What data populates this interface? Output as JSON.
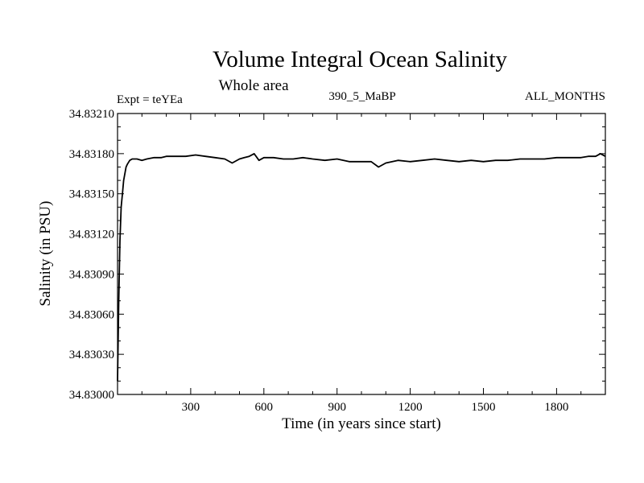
{
  "chart_data": {
    "type": "line",
    "title": "Volume Integral Ocean Salinity",
    "subtitle": "Whole area",
    "annotations": {
      "left": "Expt = teYEa",
      "center": "390_5_MaBP",
      "right": "ALL_MONTHS"
    },
    "xlabel": "Time (in years since start)",
    "ylabel": "Salinity (in PSU)",
    "xlim": [
      0,
      2000
    ],
    "ylim": [
      34.83,
      34.8321
    ],
    "x_ticks": [
      300,
      600,
      900,
      1200,
      1500,
      1800
    ],
    "x_tick_labels": [
      "300",
      "600",
      "900",
      "1200",
      "1500",
      "1800"
    ],
    "y_ticks": [
      34.83,
      34.8303,
      34.8306,
      34.8309,
      34.8312,
      34.8315,
      34.8318,
      34.8321
    ],
    "y_tick_labels": [
      "34.83000",
      "34.83030",
      "34.83060",
      "34.83090",
      "34.83120",
      "34.83150",
      "34.83180",
      "34.83210"
    ],
    "series": [
      {
        "name": "Salinity",
        "color": "#000000",
        "x": [
          0,
          5,
          10,
          15,
          20,
          25,
          30,
          35,
          40,
          50,
          60,
          80,
          100,
          120,
          150,
          180,
          200,
          240,
          280,
          320,
          360,
          400,
          440,
          470,
          500,
          520,
          540,
          560,
          580,
          600,
          640,
          680,
          720,
          760,
          800,
          850,
          900,
          950,
          1000,
          1040,
          1070,
          1100,
          1150,
          1200,
          1250,
          1300,
          1350,
          1400,
          1450,
          1500,
          1550,
          1600,
          1650,
          1700,
          1750,
          1800,
          1850,
          1900,
          1930,
          1960,
          1980,
          2000
        ],
        "y": [
          34.8301,
          34.8307,
          34.83115,
          34.8314,
          34.8315,
          34.8316,
          34.83165,
          34.8317,
          34.83172,
          34.83175,
          34.83176,
          34.83176,
          34.83175,
          34.83176,
          34.83177,
          34.83177,
          34.83178,
          34.83178,
          34.83178,
          34.83179,
          34.83178,
          34.83177,
          34.83176,
          34.83173,
          34.83176,
          34.83177,
          34.83178,
          34.8318,
          34.83175,
          34.83177,
          34.83177,
          34.83176,
          34.83176,
          34.83177,
          34.83176,
          34.83175,
          34.83176,
          34.83174,
          34.83174,
          34.83174,
          34.8317,
          34.83173,
          34.83175,
          34.83174,
          34.83175,
          34.83176,
          34.83175,
          34.83174,
          34.83175,
          34.83174,
          34.83175,
          34.83175,
          34.83176,
          34.83176,
          34.83176,
          34.83177,
          34.83177,
          34.83177,
          34.83178,
          34.83178,
          34.8318,
          34.83178
        ]
      }
    ],
    "grid": false,
    "legend": "none"
  }
}
